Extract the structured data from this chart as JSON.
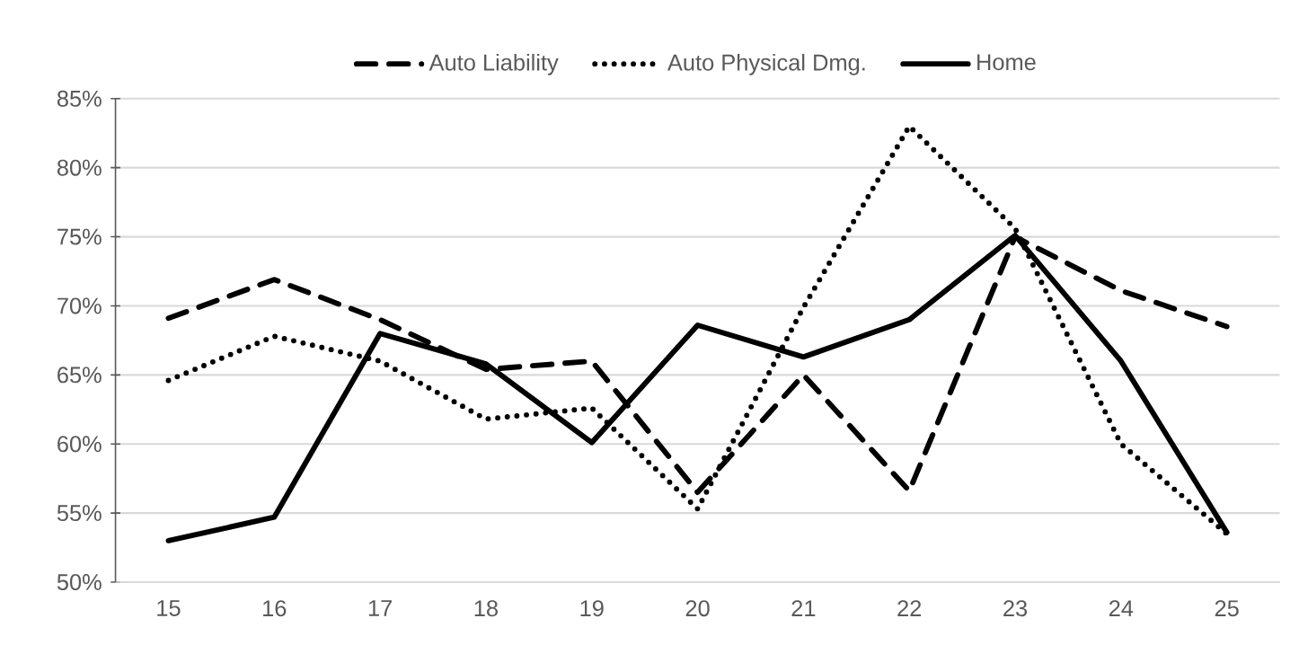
{
  "chart_data": {
    "type": "line",
    "categories": [
      "15",
      "16",
      "17",
      "18",
      "19",
      "20",
      "21",
      "22",
      "23",
      "24",
      "25"
    ],
    "series": [
      {
        "name": "Auto Liability",
        "color": "#000000",
        "line_style": "dashed",
        "values": [
          69.1,
          71.9,
          69.0,
          65.4,
          66.0,
          56.5,
          65.0,
          56.6,
          75.0,
          71.1,
          68.5
        ]
      },
      {
        "name": "Auto Physical Dmg.",
        "color": "#000000",
        "line_style": "dotted",
        "values": [
          64.6,
          67.8,
          66.0,
          61.8,
          62.6,
          55.3,
          69.9,
          83.0,
          75.6,
          60.0,
          53.5
        ]
      },
      {
        "name": "Home",
        "color": "#000000",
        "line_style": "solid",
        "values": [
          53.0,
          54.7,
          68.0,
          65.8,
          60.1,
          68.6,
          66.3,
          69.0,
          75.1,
          66.0,
          53.6
        ]
      }
    ],
    "ylim": [
      50,
      85
    ],
    "yticks": [
      {
        "value": 50,
        "label": "50%"
      },
      {
        "value": 55,
        "label": "55%"
      },
      {
        "value": 60,
        "label": "60%"
      },
      {
        "value": 65,
        "label": "65%"
      },
      {
        "value": 70,
        "label": "70%"
      },
      {
        "value": 75,
        "label": "75%"
      },
      {
        "value": 80,
        "label": "80%"
      },
      {
        "value": 85,
        "label": "85%"
      }
    ],
    "grid": "y",
    "legend": "top",
    "marker": "none"
  }
}
